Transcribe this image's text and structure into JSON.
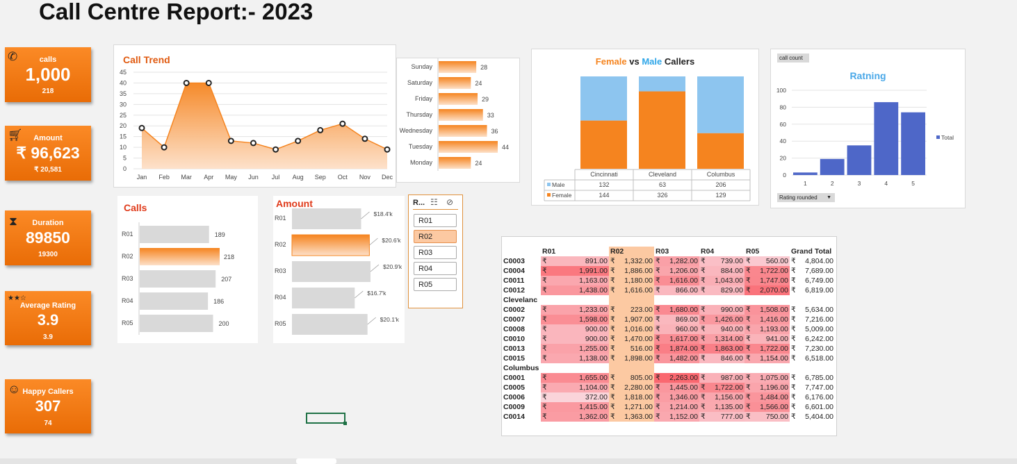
{
  "title": "Call Centre Report:- 2023",
  "kpis": [
    {
      "label": "calls",
      "value": "1,000",
      "sub": "218",
      "icon": "phone-icon"
    },
    {
      "label": "Amount",
      "value": "₹ 96,623",
      "sub": "₹ 20,581",
      "icon": "cart-icon"
    },
    {
      "label": "Duration",
      "value": "89850",
      "sub": "19300",
      "icon": "hourglass-icon"
    },
    {
      "label": "Average Rating",
      "value": "3.9",
      "sub": "3.9",
      "icon": "stars-icon",
      "stars": "★★☆"
    },
    {
      "label": "Happy Callers",
      "value": "307",
      "sub": "74",
      "icon": "smiley-icon"
    }
  ],
  "colors": {
    "orange": "#f5841f",
    "kpi_orange": "#f07a10",
    "light_blue": "#8dc5ef",
    "blue": "#4e67c8",
    "title_orange": "#e05a10"
  },
  "call_trend": {
    "title": "Call Trend",
    "yticks": [
      "45",
      "40",
      "35",
      "30",
      "25",
      "20",
      "15",
      "10",
      "5",
      "0"
    ],
    "chart_data": {
      "type": "area",
      "categories": [
        "Jan",
        "Feb",
        "Mar",
        "Apr",
        "May",
        "Jun",
        "Jul",
        "Aug",
        "Sep",
        "Oct",
        "Nov",
        "Dec"
      ],
      "values": [
        19,
        10,
        40,
        40,
        13,
        12,
        9,
        13,
        18,
        21,
        14,
        9
      ],
      "ylim": [
        0,
        45
      ]
    }
  },
  "weekday": {
    "chart_data": {
      "type": "bar",
      "categories": [
        "Sunday",
        "Saturday",
        "Friday",
        "Thursday",
        "Wednesday",
        "Tuesday",
        "Monday"
      ],
      "values": [
        28,
        24,
        29,
        33,
        36,
        44,
        24
      ]
    }
  },
  "gender": {
    "title_female": "Female",
    "title_vs": "vs",
    "title_male": "Male",
    "title_callers": "Callers",
    "chart_data": {
      "type": "bar",
      "categories": [
        "Cincinnati",
        "Cleveland",
        "Columbus"
      ],
      "series": [
        {
          "name": "Male",
          "values": [
            132,
            63,
            206
          ]
        },
        {
          "name": "Female",
          "values": [
            144,
            326,
            129
          ]
        }
      ]
    }
  },
  "rating": {
    "title": "Ratning",
    "field_button": "call count",
    "axis_button": "Rating rounded",
    "legend": "Total",
    "yticks": [
      "100",
      "80",
      "60",
      "40",
      "20",
      "0"
    ],
    "chart_data": {
      "type": "bar",
      "categories": [
        "1",
        "2",
        "3",
        "4",
        "5"
      ],
      "values": [
        3,
        19,
        35,
        86,
        74
      ],
      "ylim": [
        0,
        100
      ]
    }
  },
  "calls_chart": {
    "title": "Calls",
    "chart_data": {
      "type": "bar",
      "categories": [
        "R01",
        "R02",
        "R03",
        "R04",
        "R05"
      ],
      "values": [
        189,
        218,
        207,
        186,
        200
      ],
      "highlight": "R02"
    }
  },
  "amount_chart": {
    "title": "Amount",
    "chart_data": {
      "type": "bar",
      "categories": [
        "R01",
        "R02",
        "R03",
        "R04",
        "R05"
      ],
      "values": [
        18.4,
        20.6,
        20.9,
        16.7,
        20.1
      ],
      "labels": [
        "$18.4'k",
        "$20.6'k",
        "$20.9'k",
        "$16.7'k",
        "$20.1'k"
      ],
      "highlight": "R02"
    }
  },
  "slicer": {
    "title": "R...",
    "items": [
      "R01",
      "R02",
      "R03",
      "R04",
      "R05"
    ],
    "selected": "R02"
  },
  "pivot": {
    "headers": [
      "",
      "R01",
      "R02",
      "R03",
      "R04",
      "R05",
      "Grand Total"
    ],
    "currency": "₹",
    "rows": [
      {
        "label": "C0003",
        "values": [
          "891.00",
          "1,332.00",
          "1,282.00",
          "739.00",
          "560.00",
          "4,804.00"
        ]
      },
      {
        "label": "C0004",
        "values": [
          "1,991.00",
          "1,886.00",
          "1,206.00",
          "884.00",
          "1,722.00",
          "7,689.00"
        ]
      },
      {
        "label": "C0011",
        "values": [
          "1,163.00",
          "1,180.00",
          "1,616.00",
          "1,043.00",
          "1,747.00",
          "6,749.00"
        ]
      },
      {
        "label": "C0012",
        "values": [
          "1,438.00",
          "1,616.00",
          "866.00",
          "829.00",
          "2,070.00",
          "6,819.00"
        ]
      },
      {
        "label": "Clevelanc",
        "group": true
      },
      {
        "label": "C0002",
        "values": [
          "1,233.00",
          "223.00",
          "1,680.00",
          "990.00",
          "1,508.00",
          "5,634.00"
        ]
      },
      {
        "label": "C0007",
        "values": [
          "1,598.00",
          "1,907.00",
          "869.00",
          "1,426.00",
          "1,416.00",
          "7,216.00"
        ]
      },
      {
        "label": "C0008",
        "values": [
          "900.00",
          "1,016.00",
          "960.00",
          "940.00",
          "1,193.00",
          "5,009.00"
        ]
      },
      {
        "label": "C0010",
        "values": [
          "900.00",
          "1,470.00",
          "1,617.00",
          "1,314.00",
          "941.00",
          "6,242.00"
        ]
      },
      {
        "label": "C0013",
        "values": [
          "1,255.00",
          "516.00",
          "1,874.00",
          "1,863.00",
          "1,722.00",
          "7,230.00"
        ]
      },
      {
        "label": "C0015",
        "values": [
          "1,138.00",
          "1,898.00",
          "1,482.00",
          "846.00",
          "1,154.00",
          "6,518.00"
        ]
      },
      {
        "label": "Columbus",
        "group": true
      },
      {
        "label": "C0001",
        "values": [
          "1,655.00",
          "805.00",
          "2,263.00",
          "987.00",
          "1,075.00",
          "6,785.00"
        ]
      },
      {
        "label": "C0005",
        "values": [
          "1,104.00",
          "2,280.00",
          "1,445.00",
          "1,722.00",
          "1,196.00",
          "7,747.00"
        ]
      },
      {
        "label": "C0006",
        "values": [
          "372.00",
          "1,818.00",
          "1,346.00",
          "1,156.00",
          "1,484.00",
          "6,176.00"
        ]
      },
      {
        "label": "C0009",
        "values": [
          "1,415.00",
          "1,271.00",
          "1,214.00",
          "1,135.00",
          "1,566.00",
          "6,601.00"
        ]
      },
      {
        "label": "C0014",
        "values": [
          "1,362.00",
          "1,363.00",
          "1,152.00",
          "777.00",
          "750.00",
          "5,404.00"
        ]
      }
    ]
  }
}
